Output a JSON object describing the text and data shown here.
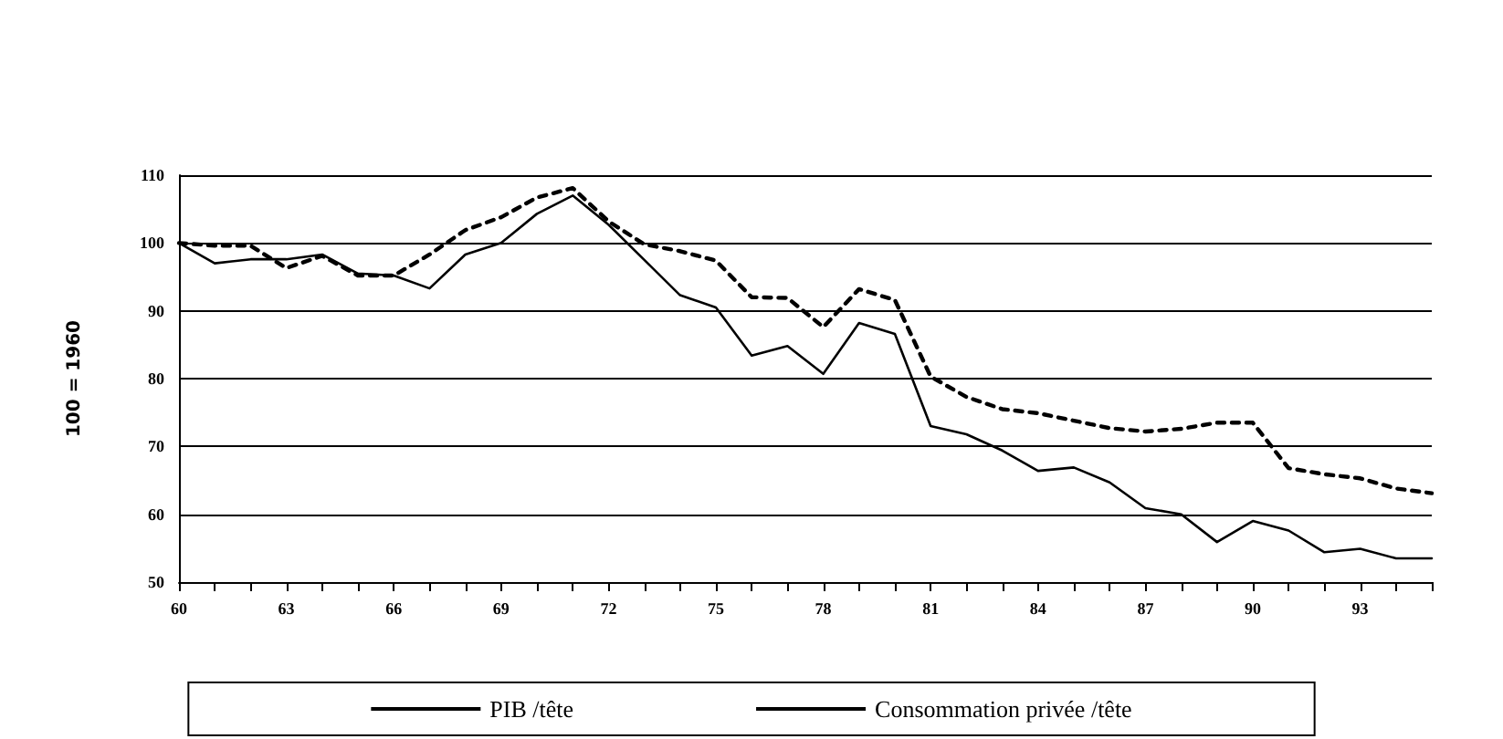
{
  "chart_data": {
    "type": "line",
    "ylabel": "100 = 1960",
    "categories": [
      "60",
      null,
      null,
      "63",
      null,
      null,
      "66",
      null,
      null,
      "69",
      null,
      null,
      "72",
      null,
      null,
      "75",
      null,
      null,
      "78",
      null,
      null,
      "81",
      null,
      null,
      "84",
      null,
      null,
      "87",
      null,
      null,
      "90",
      null,
      null,
      "93",
      null,
      null
    ],
    "series": [
      {
        "name": "PIB /tête",
        "color": "#000000",
        "line_style": "dashed",
        "values": [
          100,
          99.6,
          99.6,
          96.3,
          98.1,
          95.2,
          95.2,
          98.3,
          101.9,
          103.8,
          106.7,
          108.1,
          103.2,
          99.8,
          98.8,
          97.4,
          92.0,
          91.9,
          87.6,
          93.2,
          91.6,
          80.3,
          77.3,
          75.5,
          74.9,
          73.8,
          72.7,
          72.2,
          72.6,
          73.5,
          73.5,
          66.8,
          65.9,
          65.3,
          63.8,
          63.1
        ]
      },
      {
        "name": "Consommation privée /tête",
        "color": "#000000",
        "line_style": "solid",
        "values": [
          100,
          97.0,
          97.6,
          97.6,
          98.3,
          95.5,
          95.2,
          93.3,
          98.3,
          100,
          104.3,
          107,
          102.7,
          97.5,
          92.3,
          90.5,
          83.4,
          84.8,
          80.7,
          88.2,
          86.6,
          73.0,
          71.8,
          69.4,
          66.4,
          66.9,
          64.7,
          60.9,
          60.0,
          55.9,
          59.0,
          57.6,
          54.4,
          54.9,
          53.5,
          53.5
        ]
      }
    ],
    "ylim": [
      50,
      110
    ],
    "yticks": [
      50,
      60,
      70,
      80,
      90,
      100,
      110
    ],
    "grid": "y",
    "legend": "bottom",
    "marker": "none"
  }
}
